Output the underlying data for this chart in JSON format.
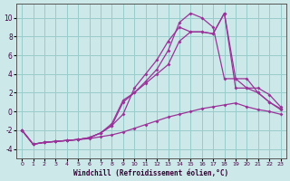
{
  "xlabel": "Windchill (Refroidissement éolien,°C)",
  "bg_color": "#cce8e8",
  "grid_color": "#99cccc",
  "line_color": "#993399",
  "xlim": [
    -0.5,
    23.5
  ],
  "ylim": [
    -5,
    11.5
  ],
  "yticks": [
    -4,
    -2,
    0,
    2,
    4,
    6,
    8,
    10
  ],
  "xticks": [
    0,
    1,
    2,
    3,
    4,
    5,
    6,
    7,
    8,
    9,
    10,
    11,
    12,
    13,
    14,
    15,
    16,
    17,
    18,
    19,
    20,
    21,
    22,
    23
  ],
  "line1_x": [
    0,
    1,
    2,
    3,
    4,
    5,
    6,
    7,
    8,
    9,
    10,
    11,
    12,
    13,
    14,
    15,
    16,
    17,
    18,
    19,
    20,
    21,
    22,
    23
  ],
  "line1_y": [
    -2.0,
    -3.5,
    -3.3,
    -3.2,
    -3.1,
    -3.0,
    -2.9,
    -2.7,
    -2.5,
    -2.2,
    -1.8,
    -1.4,
    -1.0,
    -0.6,
    -0.3,
    0.0,
    0.3,
    0.5,
    0.7,
    0.9,
    0.5,
    0.2,
    0.0,
    -0.3
  ],
  "line2_x": [
    0,
    1,
    2,
    3,
    4,
    5,
    6,
    7,
    8,
    9,
    10,
    11,
    12,
    13,
    14,
    15,
    16,
    17,
    18,
    19,
    20,
    21,
    22,
    23
  ],
  "line2_y": [
    -2.0,
    -3.5,
    -3.3,
    -3.2,
    -3.1,
    -3.0,
    -2.8,
    -2.3,
    -1.5,
    -0.3,
    2.5,
    4.0,
    5.5,
    7.5,
    9.0,
    8.5,
    8.5,
    8.3,
    10.5,
    3.5,
    2.5,
    2.0,
    1.0,
    0.3
  ],
  "line3_x": [
    0,
    1,
    2,
    3,
    4,
    5,
    6,
    7,
    8,
    9,
    10,
    11,
    12,
    13,
    14,
    15,
    16,
    17,
    18,
    19,
    20,
    21,
    22,
    23
  ],
  "line3_y": [
    -2.0,
    -3.5,
    -3.3,
    -3.2,
    -3.1,
    -3.0,
    -2.8,
    -2.3,
    -1.5,
    1.0,
    2.0,
    3.0,
    4.0,
    5.0,
    7.5,
    8.5,
    8.5,
    8.3,
    10.5,
    2.5,
    2.5,
    2.5,
    1.8,
    0.5
  ],
  "line4_x": [
    0,
    1,
    2,
    3,
    4,
    5,
    6,
    7,
    8,
    9,
    10,
    11,
    12,
    13,
    14,
    15,
    16,
    17,
    18,
    19,
    20,
    21,
    22,
    23
  ],
  "line4_y": [
    -2.0,
    -3.5,
    -3.3,
    -3.2,
    -3.1,
    -3.0,
    -2.8,
    -2.3,
    -1.3,
    1.2,
    2.0,
    3.2,
    4.5,
    6.5,
    9.5,
    10.5,
    10.0,
    9.0,
    3.5,
    3.5,
    3.5,
    2.0,
    1.0,
    0.2
  ]
}
